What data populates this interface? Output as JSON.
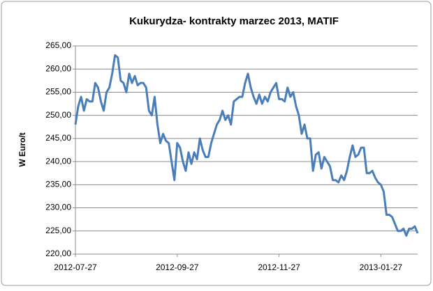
{
  "chart_data": {
    "type": "line",
    "title": "Kukurydza- kontrakty marzec 2013, MATIF",
    "y_label": "W Euro/t",
    "categories": [
      "2012-07-27",
      null,
      null,
      null,
      null,
      null,
      null,
      null,
      null,
      null,
      null,
      null,
      null,
      null,
      null,
      null,
      null,
      null,
      null,
      null,
      null,
      null,
      null,
      null,
      null,
      null,
      null,
      null,
      null,
      null,
      null,
      null,
      null,
      null,
      null,
      null,
      "2012-09-27",
      null,
      null,
      null,
      null,
      null,
      null,
      null,
      null,
      null,
      null,
      null,
      null,
      null,
      null,
      null,
      null,
      null,
      null,
      null,
      null,
      null,
      null,
      null,
      null,
      null,
      null,
      null,
      null,
      null,
      null,
      null,
      null,
      null,
      null,
      null,
      "2012-11-27",
      null,
      null,
      null,
      null,
      null,
      null,
      null,
      null,
      null,
      null,
      null,
      null,
      null,
      null,
      null,
      null,
      null,
      null,
      null,
      null,
      null,
      null,
      null,
      null,
      null,
      null,
      null,
      null,
      null,
      null,
      null,
      null,
      null,
      null,
      null,
      "2013-01-27",
      null,
      null,
      null,
      null,
      null,
      null,
      null,
      null,
      null,
      null,
      null,
      null,
      null
    ],
    "series": [
      {
        "color": "#4a7ebb",
        "values": [
          248,
          252,
          254,
          251,
          253.5,
          253,
          253,
          257,
          256,
          253,
          251,
          255,
          256,
          259,
          263,
          262.5,
          257.5,
          257,
          255,
          259,
          257,
          258.5,
          256.5,
          257,
          257,
          256,
          251,
          250,
          254,
          248,
          244,
          246,
          244.5,
          244,
          240,
          236,
          244,
          243,
          240,
          238,
          242,
          239.5,
          242,
          240.5,
          245,
          242.5,
          241,
          241,
          244,
          246,
          248,
          249,
          251,
          249,
          250,
          248,
          253,
          253.5,
          254,
          254,
          257,
          259,
          256,
          254,
          252.5,
          254.5,
          252.5,
          254,
          253,
          255,
          256,
          257,
          253.5,
          253.5,
          253,
          256,
          254,
          255,
          252,
          250,
          246,
          248,
          245,
          245,
          238,
          241.5,
          242,
          238.5,
          241,
          240,
          239,
          236,
          236,
          235.5,
          237,
          236,
          238,
          241,
          243.5,
          241,
          241.5,
          243,
          243,
          237.5,
          237.5,
          238,
          236.5,
          235.5,
          235,
          233.5,
          228.5,
          228.5,
          228,
          226.5,
          225,
          225,
          225.5,
          224,
          225.5,
          225.5,
          226,
          224.5
        ]
      }
    ],
    "ylim": [
      220,
      265
    ],
    "yticks": [
      {
        "value": 220,
        "label": "220,00"
      },
      {
        "value": 225,
        "label": "225,00"
      },
      {
        "value": 230,
        "label": "230,00"
      },
      {
        "value": 235,
        "label": "235,00"
      },
      {
        "value": 240,
        "label": "240,00"
      },
      {
        "value": 245,
        "label": "245,00"
      },
      {
        "value": 250,
        "label": "250,00"
      },
      {
        "value": 255,
        "label": "255,00"
      },
      {
        "value": 260,
        "label": "260,00"
      },
      {
        "value": 265,
        "label": "265,00"
      }
    ],
    "grid": true
  }
}
